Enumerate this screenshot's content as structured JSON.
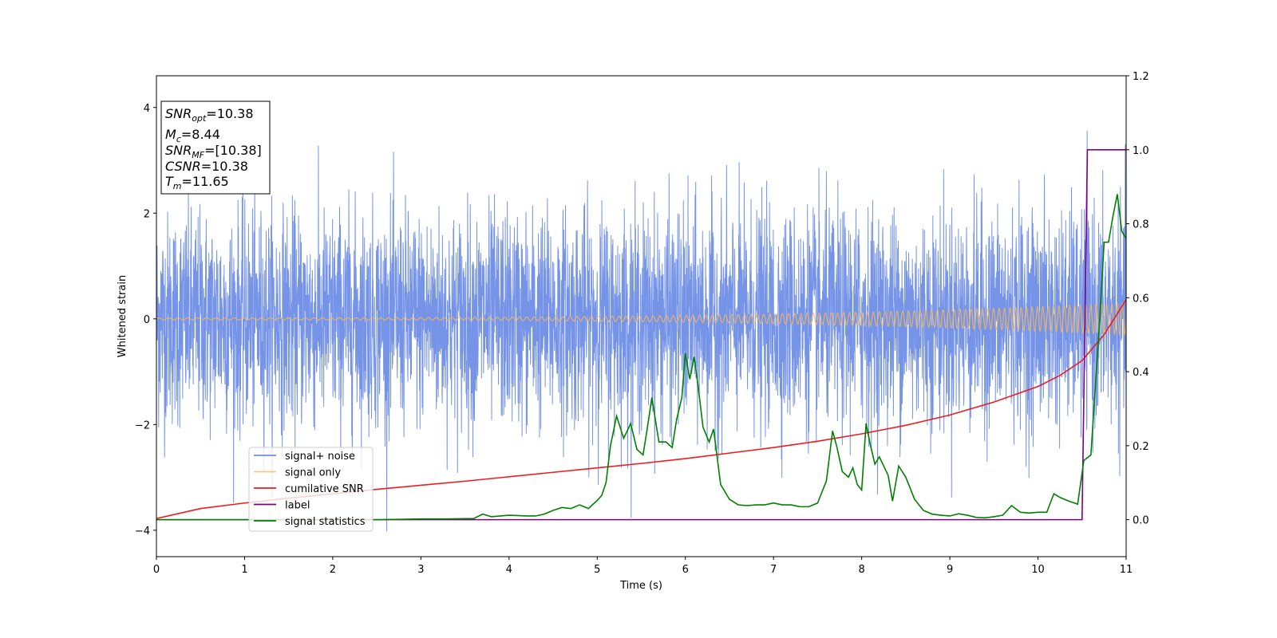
{
  "chart_data": {
    "type": "line",
    "xlabel": "Time (s)",
    "ylabel": "Whitened strain",
    "xlim": [
      0,
      11
    ],
    "ylim": [
      -4.5,
      4.6
    ],
    "y2lim": [
      -0.1,
      1.2
    ],
    "x_ticks": [
      0,
      1,
      2,
      3,
      4,
      5,
      6,
      7,
      8,
      9,
      10,
      11
    ],
    "y_ticks": [
      -4,
      -2,
      0,
      2,
      4
    ],
    "y_tick_labels": [
      "−4",
      "−2",
      "0",
      "2",
      "4"
    ],
    "y2_ticks": [
      0.0,
      0.2,
      0.4,
      0.6,
      0.8,
      1.0,
      1.2
    ],
    "y2_tick_labels": [
      "0.0",
      "0.2",
      "0.4",
      "0.6",
      "0.8",
      "1.0",
      "1.2"
    ],
    "legend": {
      "placement": "lower-left",
      "entries": [
        "signal+ noise",
        "signal only",
        "cumilative SNR",
        "label",
        "signal statistics"
      ]
    },
    "info_box": {
      "snr_opt": "=10.38",
      "mc": "=8.44",
      "snr_mf": "=[10.38]",
      "csnr": "=10.38",
      "tm": "=11.65"
    },
    "series": [
      {
        "name": "signal+ noise",
        "axis": "left",
        "color": "#6f8ee6",
        "description_values": "white noise, approx. amplitude range -4.1 to 4.1",
        "noise_sigma": 1.0
      },
      {
        "name": "signal only",
        "axis": "left",
        "color": "#f5b55c",
        "amplitude_start": 0.02,
        "amplitude_end": 0.3
      },
      {
        "name": "cumilative SNR",
        "axis": "right",
        "color": "#ee1c1c",
        "x": [
          0,
          0.5,
          1,
          1.5,
          2,
          2.5,
          3,
          3.5,
          4,
          4.5,
          5,
          5.5,
          6,
          6.5,
          7,
          7.5,
          8,
          8.5,
          9,
          9.5,
          10,
          10.25,
          10.5,
          10.75,
          11
        ],
        "y": [
          0.003,
          0.03,
          0.045,
          0.058,
          0.07,
          0.082,
          0.093,
          0.104,
          0.116,
          0.128,
          0.14,
          0.152,
          0.165,
          0.18,
          0.195,
          0.212,
          0.232,
          0.255,
          0.283,
          0.318,
          0.36,
          0.39,
          0.43,
          0.5,
          0.595
        ]
      },
      {
        "name": "label",
        "axis": "right",
        "color": "#800080",
        "x": [
          0,
          10.5,
          10.56,
          11
        ],
        "y": [
          0,
          0,
          1,
          1
        ]
      },
      {
        "name": "signal statistics",
        "axis": "right",
        "color": "#008000",
        "x": [
          0,
          0.5,
          1,
          1.5,
          2,
          2.5,
          3,
          3.3,
          3.6,
          3.7,
          3.8,
          4.0,
          4.2,
          4.3,
          4.4,
          4.5,
          4.6,
          4.7,
          4.8,
          4.9,
          5.0,
          5.05,
          5.1,
          5.15,
          5.22,
          5.3,
          5.38,
          5.45,
          5.52,
          5.57,
          5.62,
          5.7,
          5.78,
          5.85,
          5.9,
          5.96,
          6.0,
          6.05,
          6.1,
          6.15,
          6.2,
          6.27,
          6.32,
          6.4,
          6.5,
          6.6,
          6.7,
          6.8,
          6.9,
          7.0,
          7.1,
          7.2,
          7.3,
          7.4,
          7.5,
          7.6,
          7.67,
          7.72,
          7.78,
          7.85,
          7.9,
          7.95,
          8.0,
          8.05,
          8.1,
          8.15,
          8.2,
          8.3,
          8.35,
          8.42,
          8.5,
          8.6,
          8.7,
          8.8,
          8.9,
          9.0,
          9.1,
          9.2,
          9.3,
          9.4,
          9.5,
          9.6,
          9.7,
          9.8,
          9.9,
          10.0,
          10.1,
          10.18,
          10.25,
          10.35,
          10.45,
          10.52,
          10.6,
          10.7,
          10.75,
          10.8,
          10.85,
          10.9,
          10.95,
          11.0
        ],
        "y": [
          0.0,
          0.0,
          0.0,
          0.0,
          0.0,
          0.0,
          0.002,
          0.002,
          0.003,
          0.015,
          0.008,
          0.012,
          0.01,
          0.01,
          0.015,
          0.025,
          0.033,
          0.03,
          0.04,
          0.03,
          0.052,
          0.065,
          0.1,
          0.2,
          0.28,
          0.22,
          0.26,
          0.19,
          0.175,
          0.25,
          0.33,
          0.21,
          0.21,
          0.195,
          0.27,
          0.33,
          0.45,
          0.38,
          0.44,
          0.35,
          0.25,
          0.21,
          0.245,
          0.095,
          0.055,
          0.04,
          0.038,
          0.04,
          0.04,
          0.045,
          0.04,
          0.04,
          0.035,
          0.035,
          0.045,
          0.105,
          0.24,
          0.195,
          0.13,
          0.115,
          0.14,
          0.095,
          0.08,
          0.26,
          0.2,
          0.15,
          0.17,
          0.12,
          0.05,
          0.145,
          0.115,
          0.055,
          0.025,
          0.015,
          0.012,
          0.01,
          0.016,
          0.012,
          0.006,
          0.005,
          0.008,
          0.012,
          0.038,
          0.02,
          0.018,
          0.02,
          0.02,
          0.07,
          0.06,
          0.05,
          0.042,
          0.16,
          0.175,
          0.54,
          0.75,
          0.75,
          0.82,
          0.88,
          0.78,
          0.76
        ]
      }
    ]
  }
}
